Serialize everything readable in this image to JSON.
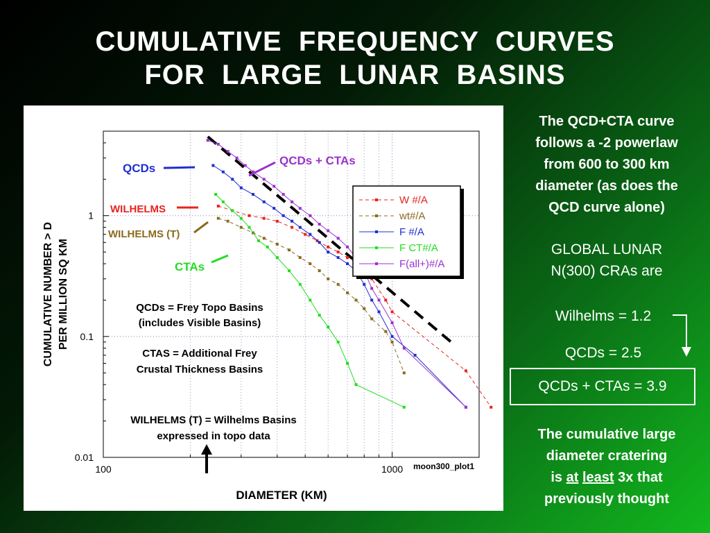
{
  "slide": {
    "title_line1": "CUMULATIVE  FREQUENCY  CURVES",
    "title_line2": "FOR  LARGE  LUNAR  BASINS",
    "colors": {
      "background_start": "#000000",
      "background_end": "#12b81e",
      "text": "#ffffff"
    }
  },
  "right_panel": {
    "para1_l1": "The QCD+CTA curve",
    "para1_l2": "follows a -2 powerlaw",
    "para1_l3": "from 600 to 300 km",
    "para1_l4": "diameter (as does the",
    "para1_l5": "QCD curve alone)",
    "global_l1": "GLOBAL LUNAR",
    "global_l2": "N(300) CRAs are",
    "wilhelms": "Wilhelms = 1.2",
    "qcds": "QCDs = 2.5",
    "qcds_ctas": "QCDs + CTAs = 3.9",
    "concl_l1": "The cumulative large",
    "concl_l2": "diameter cratering",
    "concl_is": "is",
    "concl_at": "at",
    "concl_least": "least",
    "concl_3x": "3x that",
    "concl_l4": "previously thought"
  },
  "chart_data": {
    "type": "scatter",
    "xscale": "log",
    "yscale": "log",
    "xlim": [
      100,
      2000
    ],
    "ylim": [
      0.01,
      5
    ],
    "xlabel": "DIAMETER (KM)",
    "ylabel_line1": "CUMULATIVE NUMBER > D",
    "ylabel_line2": "PER MILLION SQ KM",
    "x_ticks": [
      {
        "v": 100,
        "label": "100"
      },
      {
        "v": 1000,
        "label": "1000"
      }
    ],
    "y_ticks": [
      {
        "v": 1,
        "label": "1"
      },
      {
        "v": 0.1,
        "label": "0.1"
      },
      {
        "v": 0.01,
        "label": "0.01"
      }
    ],
    "grid": true,
    "plot_id": "moon300_plot1",
    "legend": [
      "W #/A",
      "wt#/A",
      "F #/A",
      "F CT#/A",
      "F(all+)#/A"
    ],
    "legend_placement": "top-right",
    "series": [
      {
        "name": "W #/A",
        "color": "#e8231e",
        "dashed": true,
        "x": [
          250,
          280,
          320,
          360,
          400,
          450,
          500,
          550,
          600,
          650,
          700,
          750,
          800,
          850,
          950,
          1000,
          1800,
          2200
        ],
        "y": [
          1.2,
          1.1,
          1.0,
          0.95,
          0.9,
          0.8,
          0.7,
          0.62,
          0.55,
          0.5,
          0.45,
          0.42,
          0.35,
          0.3,
          0.2,
          0.16,
          0.052,
          0.026
        ]
      },
      {
        "name": "wt#/A",
        "color": "#8b6a1e",
        "dashed": true,
        "x": [
          250,
          270,
          300,
          330,
          360,
          400,
          440,
          480,
          520,
          560,
          600,
          650,
          700,
          750,
          800,
          850,
          950,
          1000,
          1100
        ],
        "y": [
          0.95,
          0.9,
          0.8,
          0.72,
          0.65,
          0.58,
          0.52,
          0.45,
          0.4,
          0.35,
          0.3,
          0.27,
          0.23,
          0.2,
          0.17,
          0.14,
          0.11,
          0.09,
          0.05
        ]
      },
      {
        "name": "F #/A",
        "color": "#1f2fcf",
        "dashed": false,
        "x": [
          240,
          260,
          280,
          300,
          330,
          360,
          390,
          420,
          450,
          480,
          520,
          560,
          600,
          650,
          700,
          750,
          800,
          850,
          900,
          1000,
          1200,
          1800
        ],
        "y": [
          2.6,
          2.3,
          2.0,
          1.7,
          1.5,
          1.3,
          1.15,
          1.0,
          0.9,
          0.8,
          0.7,
          0.6,
          0.5,
          0.45,
          0.4,
          0.35,
          0.27,
          0.2,
          0.16,
          0.1,
          0.07,
          0.026
        ]
      },
      {
        "name": "F CT#/A",
        "color": "#22dd22",
        "dashed": false,
        "x": [
          245,
          260,
          280,
          300,
          320,
          345,
          370,
          400,
          440,
          480,
          520,
          560,
          600,
          650,
          700,
          750,
          1100
        ],
        "y": [
          1.5,
          1.3,
          1.1,
          0.95,
          0.8,
          0.62,
          0.55,
          0.45,
          0.35,
          0.27,
          0.2,
          0.15,
          0.12,
          0.09,
          0.06,
          0.04,
          0.026
        ]
      },
      {
        "name": "F(all+)#/A",
        "color": "#9a33cc",
        "dashed": false,
        "x": [
          230,
          250,
          270,
          290,
          310,
          330,
          360,
          390,
          420,
          450,
          480,
          520,
          560,
          600,
          650,
          700,
          750,
          800,
          850,
          900,
          1000,
          1100,
          1800
        ],
        "y": [
          4.2,
          3.9,
          3.4,
          3.0,
          2.6,
          2.3,
          2.0,
          1.75,
          1.5,
          1.3,
          1.15,
          1.0,
          0.85,
          0.75,
          0.65,
          0.55,
          0.45,
          0.35,
          0.25,
          0.2,
          0.13,
          0.08,
          0.026
        ]
      }
    ],
    "powerlaw_guide": {
      "color": "#000000",
      "x": [
        230,
        1600
      ],
      "y": [
        4.5,
        0.09
      ]
    },
    "annotations": {
      "qcds": "QCDs",
      "qcds_ctas": "QCDs + CTAs",
      "wilhelms": "WILHELMS",
      "wilhelms_t": "WILHELMS (T)",
      "ctas": "CTAs",
      "note1_l1": "QCDs = Frey Topo Basins",
      "note1_l2": "(includes Visible Basins)",
      "note2_l1": "CTAS = Additional Frey",
      "note2_l2": "Crustal Thickness Basins",
      "note3_l1": "WILHELMS (T) = Wilhelms Basins",
      "note3_l2": "expressed in topo data"
    }
  }
}
